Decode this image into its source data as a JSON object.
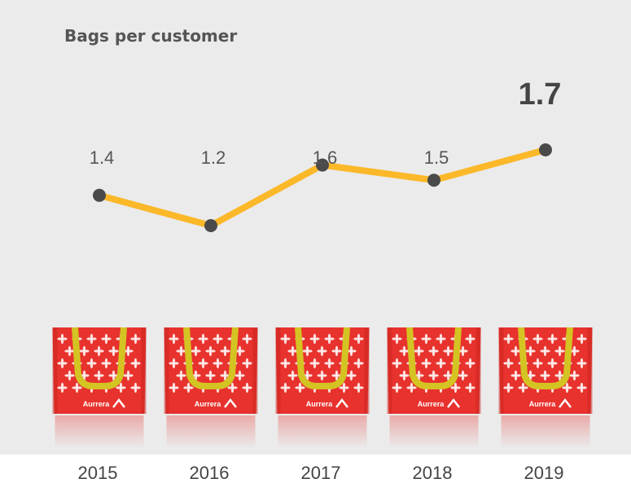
{
  "chart_data": {
    "type": "line",
    "title": "Bags per customer",
    "categories": [
      "2015",
      "2016",
      "2017",
      "2018",
      "2019"
    ],
    "values": [
      1.4,
      1.2,
      1.6,
      1.5,
      1.7
    ],
    "value_labels": [
      "1.4",
      "1.2",
      "1.6",
      "1.5",
      "1.7"
    ],
    "highlight_index": 4,
    "line_color": "#fbb829",
    "marker_color": "#4a4a4a",
    "grid": false,
    "legend": "none"
  },
  "decoration": {
    "bag_brand": "Aurrera",
    "bag_color": "#e8322d",
    "handle_color": "#d4c423"
  }
}
